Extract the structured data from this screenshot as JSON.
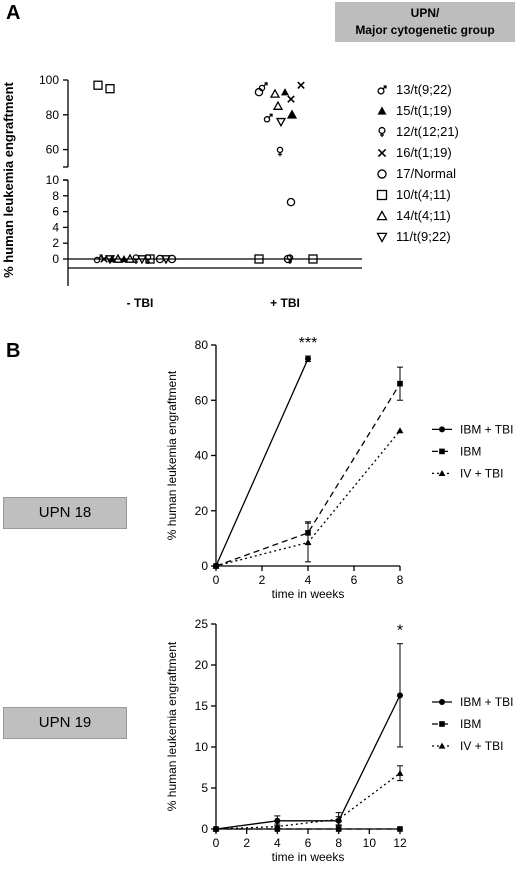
{
  "panel_a": {
    "letter": "A",
    "header": [
      "UPN/",
      "Major cytogenetic group"
    ]
  },
  "panel_b": {
    "letter": "B",
    "upn_labels": [
      "UPN 18",
      "UPN 19"
    ]
  },
  "chart_data": [
    {
      "type": "scatter",
      "ylabel": "% human leukemia engraftment",
      "categories": [
        "-  TBI",
        "+ TBI"
      ],
      "y_ticks_lower": [
        "0",
        "2",
        "4",
        "6",
        "8",
        "10"
      ],
      "y_ticks_upper": [
        "60",
        "80",
        "100"
      ],
      "axis_break": true,
      "legend_placement": "right",
      "series": [
        {
          "name": "13/t(9;22)",
          "marker": "male-symbol",
          "minus_tbi": [
            0
          ],
          "plus_tbi": [
            96,
            78
          ]
        },
        {
          "name": "15/t(1;19)",
          "marker": "filled-triangle",
          "minus_tbi": [
            0,
            0
          ],
          "plus_tbi": [
            93,
            80
          ]
        },
        {
          "name": "12/t(12;21)",
          "marker": "female-symbol",
          "minus_tbi": [
            0,
            0
          ],
          "plus_tbi": [
            59,
            0
          ]
        },
        {
          "name": "16/t(1;19)",
          "marker": "cross",
          "minus_tbi": [
            0
          ],
          "plus_tbi": [
            97,
            89
          ]
        },
        {
          "name": "17/Normal",
          "marker": "open-circle",
          "minus_tbi": [
            0,
            0
          ],
          "plus_tbi": [
            93,
            7.2,
            0
          ]
        },
        {
          "name": "10/t(4;11)",
          "marker": "open-square",
          "minus_tbi": [
            97,
            95,
            0
          ],
          "plus_tbi": [
            0,
            0
          ]
        },
        {
          "name": "14/t(4;11)",
          "marker": "open-triangle",
          "minus_tbi": [
            0,
            0
          ],
          "plus_tbi": [
            92,
            85,
            80
          ]
        },
        {
          "name": "11/t(9;22)",
          "marker": "open-inverted-triangle",
          "minus_tbi": [
            0,
            0,
            0
          ],
          "plus_tbi": [
            76
          ]
        }
      ]
    },
    {
      "type": "line",
      "xlabel": "time in weeks",
      "ylabel": "% human leukemia engraftment",
      "xlim": [
        0,
        8
      ],
      "ylim": [
        0,
        80
      ],
      "x_ticks": [
        0,
        2,
        4,
        6,
        8
      ],
      "y_ticks": [
        0,
        20,
        40,
        60,
        80
      ],
      "legend_placement": "right",
      "annotations": [
        {
          "x": 4,
          "text": "***"
        }
      ],
      "series": [
        {
          "name": "IBM + TBI",
          "style": "solid",
          "marker": "circle",
          "x": [
            0,
            4
          ],
          "y": [
            0,
            75
          ],
          "err": [
            0,
            1
          ]
        },
        {
          "name": "IBM",
          "style": "dashed",
          "marker": "square",
          "x": [
            0,
            4,
            8
          ],
          "y": [
            0,
            12,
            66
          ],
          "err": [
            0,
            4,
            6
          ]
        },
        {
          "name": "IV + TBI",
          "style": "dotted",
          "marker": "triangle",
          "x": [
            0,
            4,
            8
          ],
          "y": [
            0,
            8.5,
            49
          ],
          "err": [
            0,
            7,
            0
          ]
        }
      ]
    },
    {
      "type": "line",
      "xlabel": "time in weeks",
      "ylabel": "% human leukemia engraftment",
      "xlim": [
        0,
        12
      ],
      "ylim": [
        0,
        25
      ],
      "x_ticks": [
        0,
        2,
        4,
        6,
        8,
        10,
        12
      ],
      "y_ticks": [
        0,
        5,
        10,
        15,
        20,
        25
      ],
      "legend_placement": "right",
      "annotations": [
        {
          "x": 12,
          "text": "*"
        }
      ],
      "series": [
        {
          "name": "IBM + TBI",
          "style": "solid",
          "marker": "circle",
          "x": [
            0,
            4,
            8,
            12
          ],
          "y": [
            0,
            1,
            1,
            16.3
          ],
          "err": [
            0,
            0.6,
            0.5,
            6.3
          ]
        },
        {
          "name": "IBM",
          "style": "dashed",
          "marker": "square",
          "x": [
            0,
            4,
            8,
            12
          ],
          "y": [
            0,
            0,
            0,
            0
          ],
          "err": [
            0,
            0,
            0,
            0
          ]
        },
        {
          "name": "IV + TBI",
          "style": "dotted",
          "marker": "triangle",
          "x": [
            0,
            4,
            8,
            12
          ],
          "y": [
            0,
            0.3,
            1.2,
            6.8
          ],
          "err": [
            0,
            0.3,
            0.8,
            0.9
          ]
        }
      ]
    }
  ]
}
